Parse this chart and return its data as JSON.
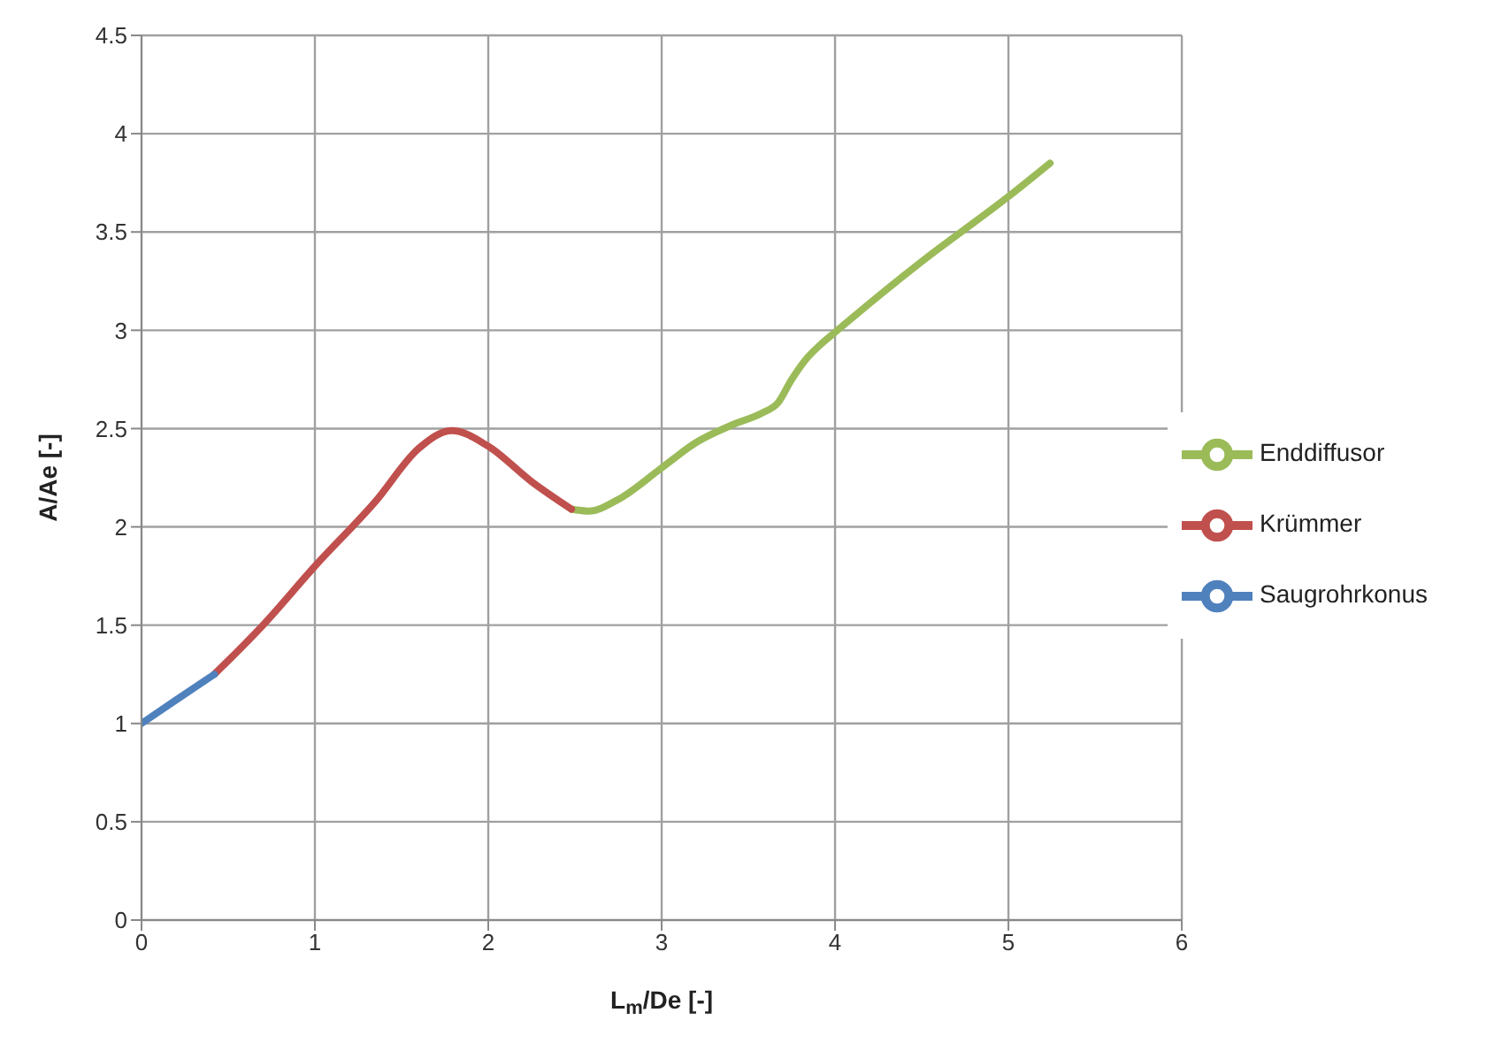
{
  "chart_data": {
    "type": "line",
    "xlabel": "L$_{m}$/De [-]",
    "ylabel": "A/Ae [-]",
    "xlim": [
      0,
      6
    ],
    "xticks": [
      0,
      1,
      2,
      3,
      4,
      5,
      6
    ],
    "ylim": [
      0,
      4.5
    ],
    "yticks": [
      0,
      0.5,
      1,
      1.5,
      2,
      2.5,
      3,
      3.5,
      4,
      4.5
    ],
    "grid": true,
    "legend": "right",
    "marker": "none",
    "line_style": "solid",
    "series": [
      {
        "name": "Enddiffusor",
        "color": "#9bbb59",
        "x": [
          2.48,
          2.58,
          2.75,
          3,
          3.2,
          3.41,
          3.58,
          3.67,
          3.75,
          3.83,
          3.92,
          4,
          4.5,
          5,
          5.24
        ],
        "values": [
          2.09,
          2.08,
          2.14,
          2.3,
          2.43,
          2.52,
          2.58,
          2.63,
          2.75,
          2.85,
          2.93,
          2.99,
          3.35,
          3.68,
          3.85
        ]
      },
      {
        "name": "Krümmer",
        "color": "#c0504d",
        "x": [
          0.42,
          0.7,
          1,
          1.35,
          1.6,
          1.79,
          2,
          2.25,
          2.48
        ],
        "values": [
          1.25,
          1.5,
          1.8,
          2.13,
          2.4,
          2.49,
          2.41,
          2.23,
          2.09
        ]
      },
      {
        "name": "Saugrohrkonus",
        "color": "#4f81bd",
        "x": [
          0,
          0.2,
          0.42
        ],
        "values": [
          1,
          1.12,
          1.25
        ]
      }
    ]
  }
}
